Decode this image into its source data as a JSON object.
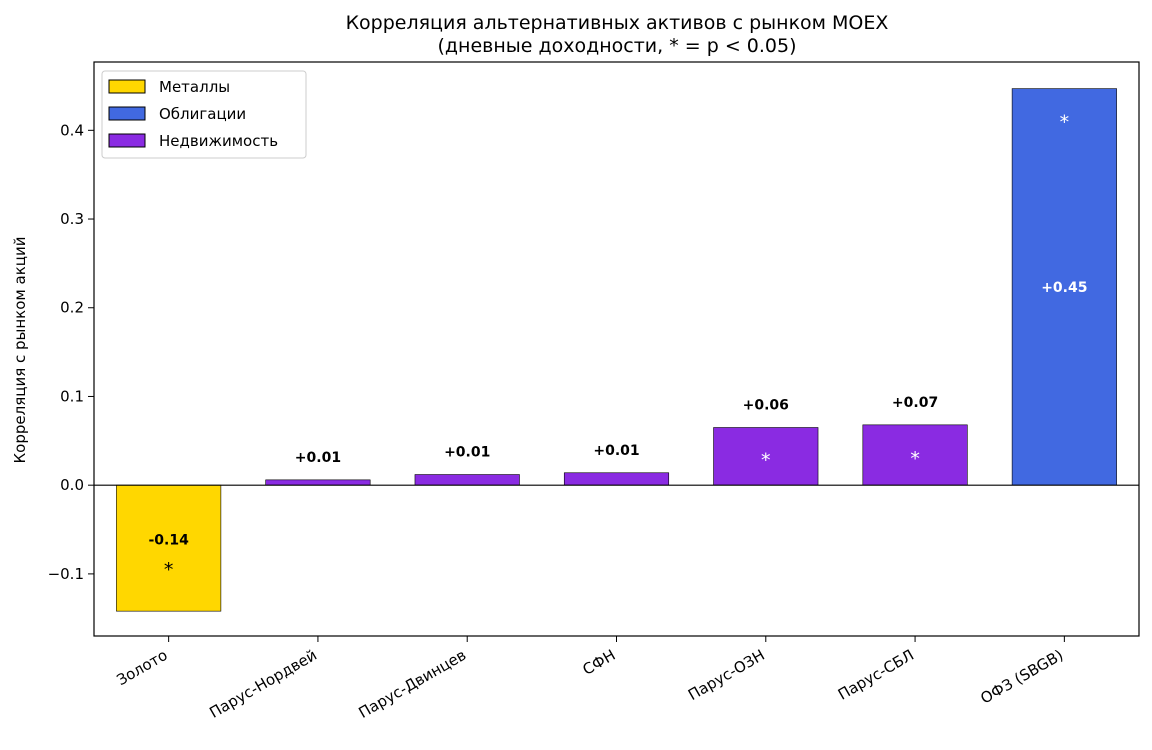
{
  "chart_data": {
    "type": "bar",
    "title": "Корреляция альтернативных активов с рынком MOEX",
    "subtitle": "(дневные доходности, * = p < 0.05)",
    "xlabel": "",
    "ylabel": "Корреляция с рынком акций",
    "ylim": [
      -0.17,
      0.477
    ],
    "yticks": [
      -0.1,
      0.0,
      0.1,
      0.2,
      0.3,
      0.4
    ],
    "ytick_labels": [
      "−0.1",
      "0.0",
      "0.1",
      "0.2",
      "0.3",
      "0.4"
    ],
    "grid": false,
    "legend_position": "top-left",
    "categories": [
      "Золото",
      "Парус-Нордвей",
      "Парус-Двинцев",
      "СФН",
      "Парус-ОЗН",
      "Парус-СБЛ",
      "ОФЗ (SBGB)"
    ],
    "values": [
      -0.142,
      0.006,
      0.012,
      0.014,
      0.065,
      0.068,
      0.447
    ],
    "value_labels": [
      "-0.14",
      "+0.01",
      "+0.01",
      "+0.01",
      "+0.06",
      "+0.07",
      "+0.45"
    ],
    "significant": [
      true,
      false,
      false,
      false,
      true,
      true,
      true
    ],
    "significance_marker": "*",
    "bar_groups": [
      "Металлы",
      "Недвижимость",
      "Недвижимость",
      "Недвижимость",
      "Недвижимость",
      "Недвижимость",
      "Облигации"
    ],
    "legend": [
      {
        "name": "Металлы",
        "color": "#FFD700"
      },
      {
        "name": "Облигации",
        "color": "#4169E1"
      },
      {
        "name": "Недвижимость",
        "color": "#8A2BE2"
      }
    ]
  }
}
